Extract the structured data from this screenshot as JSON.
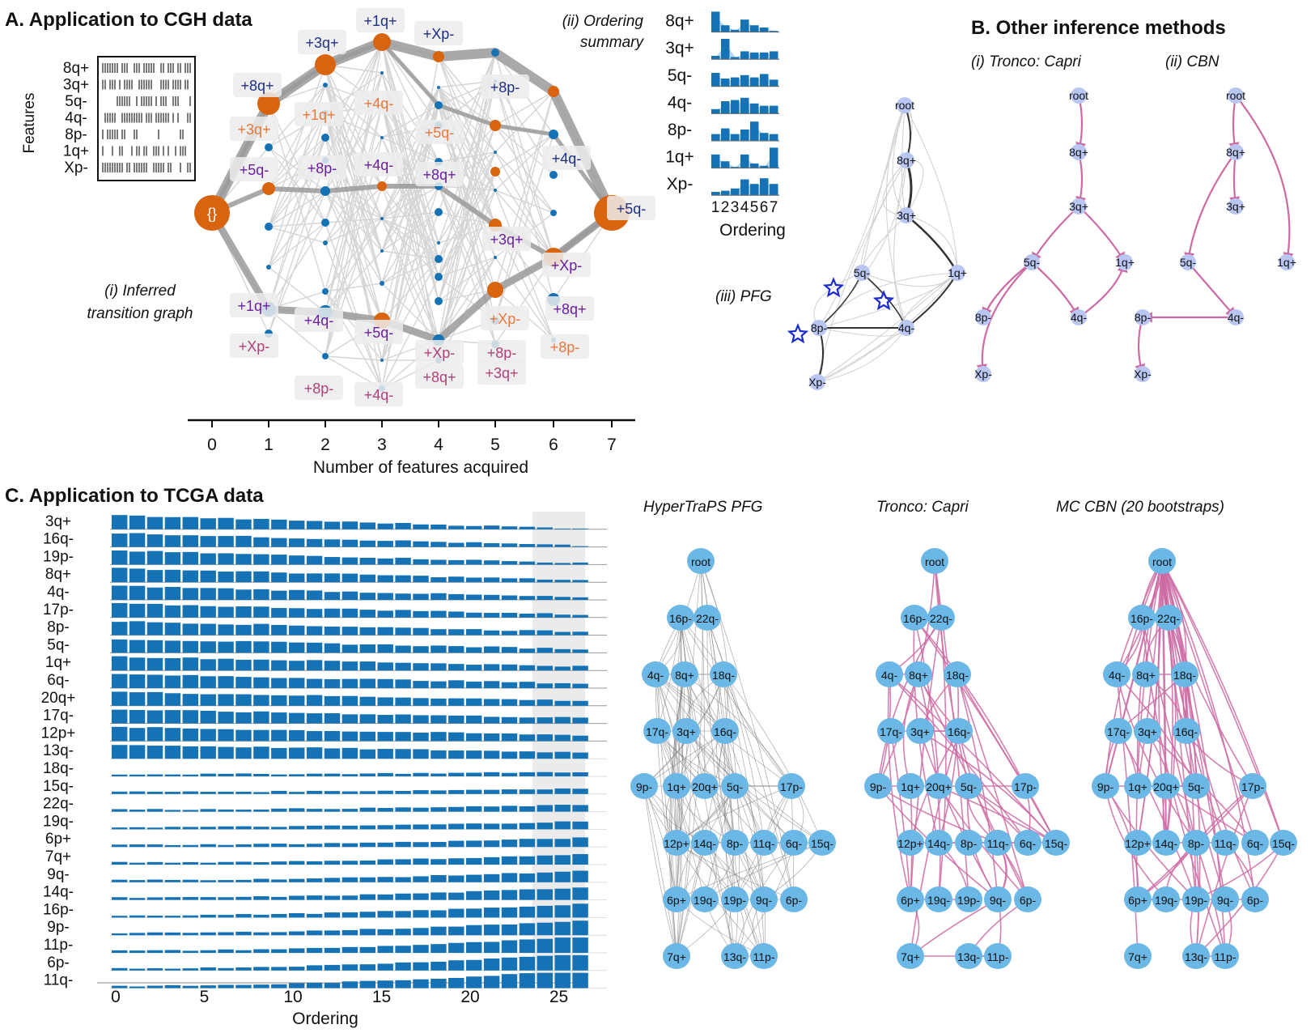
{
  "panelA": {
    "title": "A. Application to CGH data",
    "feature_axis_label": "Features",
    "features": [
      "8q+",
      "3q+",
      "5q-",
      "4q-",
      "8p-",
      "1q+",
      "Xp-"
    ],
    "caption_graph": "(i) Inferred transition graph",
    "caption_graph_line1": "(i) Inferred",
    "caption_graph_line2": "transition graph",
    "caption_summary_line1": "(ii) Ordering",
    "caption_summary_line2": "summary",
    "x_axis_label": "Number of features acquired",
    "x_ticks": [
      "0",
      "1",
      "2",
      "3",
      "4",
      "5",
      "6",
      "7"
    ],
    "start_node": "{}",
    "transition_labels": [
      {
        "text": "+3q+",
        "color": "#1f2f86"
      },
      {
        "text": "+1q+",
        "color": "#1f2f86"
      },
      {
        "text": "+Xp-",
        "color": "#1f2f86"
      },
      {
        "text": "+8q+",
        "color": "#1f2f86"
      },
      {
        "text": "+8p-",
        "color": "#1f2f86"
      },
      {
        "text": "+4q-",
        "color": "#1f2f86"
      },
      {
        "text": "+5q-",
        "color": "#1f2f86"
      },
      {
        "text": "+3q+",
        "color": "#e8783c"
      },
      {
        "text": "+1q+",
        "color": "#e8783c"
      },
      {
        "text": "+4q-",
        "color": "#e8783c"
      },
      {
        "text": "+5q-",
        "color": "#e8783c"
      },
      {
        "text": "+5q-",
        "color": "#6a1fa0"
      },
      {
        "text": "+8p-",
        "color": "#6a1fa0"
      },
      {
        "text": "+4q-",
        "color": "#6a1fa0"
      },
      {
        "text": "+8q+",
        "color": "#6a1fa0"
      },
      {
        "text": "+3q+",
        "color": "#6a1fa0"
      },
      {
        "text": "+Xp-",
        "color": "#6a1fa0"
      },
      {
        "text": "+1q+",
        "color": "#6a1fa0"
      },
      {
        "text": "+4q-",
        "color": "#6a1fa0"
      },
      {
        "text": "+5q-",
        "color": "#6a1fa0"
      },
      {
        "text": "+8q+",
        "color": "#6a1fa0"
      },
      {
        "text": "+Xp-",
        "color": "#e8783c"
      },
      {
        "text": "+8p-",
        "color": "#e8783c"
      },
      {
        "text": "+Xp-",
        "color": "#b0407a"
      },
      {
        "text": "+Xp-",
        "color": "#b0407a"
      },
      {
        "text": "+8q+",
        "color": "#b0407a"
      },
      {
        "text": "+8p-",
        "color": "#b0407a"
      },
      {
        "text": "+3q+",
        "color": "#b0407a"
      },
      {
        "text": "+8p-",
        "color": "#b0407a"
      },
      {
        "text": "+4q-",
        "color": "#b0407a"
      }
    ],
    "summary_rows": [
      "8q+",
      "3q+",
      "5q-",
      "4q-",
      "8p-",
      "1q+",
      "Xp-"
    ],
    "summary_ticks": [
      "1",
      "2",
      "3",
      "4",
      "5",
      "6",
      "7"
    ],
    "summary_axis_label": "Ordering",
    "summary_values": [
      [
        0.9,
        0.3,
        0.1,
        0.55,
        0.3,
        0.2,
        0.05
      ],
      [
        0.15,
        0.9,
        0.1,
        0.35,
        0.3,
        0.3,
        0.35
      ],
      [
        0.6,
        0.35,
        0.4,
        0.5,
        0.4,
        0.55,
        0.3
      ],
      [
        0.2,
        0.55,
        0.6,
        0.7,
        0.45,
        0.35,
        0.35
      ],
      [
        0.3,
        0.55,
        0.3,
        0.5,
        0.85,
        0.35,
        0.3
      ],
      [
        0.6,
        0.3,
        0.05,
        0.6,
        0.2,
        0.1,
        0.9
      ],
      [
        0.15,
        0.2,
        0.3,
        0.7,
        0.5,
        0.75,
        0.5
      ]
    ],
    "pfg_caption": "(iii) PFG",
    "pfg_nodes": [
      "root",
      "8q+",
      "3q+",
      "1q+",
      "5q-",
      "4q-",
      "8p-",
      "Xp-"
    ]
  },
  "panelB": {
    "title": "B.   Other inference methods",
    "capri_caption": "(i) Tronco: Capri",
    "cbn_caption": "(ii) CBN",
    "capri_nodes": [
      "root",
      "8q+",
      "3q+",
      "5q-",
      "1q+",
      "8p-",
      "4q-",
      "Xp-"
    ],
    "cbn_nodes": [
      "root",
      "8q+",
      "3q+",
      "5q-",
      "1q+",
      "8p-",
      "4q-",
      "Xp-"
    ]
  },
  "panelC": {
    "title": "C. Application to TCGA data",
    "features": [
      "3q+",
      "16q-",
      "19p-",
      "8q+",
      "4q-",
      "17p-",
      "8p-",
      "5q-",
      "1q+",
      "6q-",
      "20q+",
      "17q-",
      "12p+",
      "13q-",
      "18q-",
      "15q-",
      "22q-",
      "19q-",
      "6p+",
      "7q+",
      "9q-",
      "14q-",
      "16p-",
      "9p-",
      "11p-",
      "6p-",
      "11q-"
    ],
    "x_ticks": [
      "0",
      "5",
      "10",
      "15",
      "20",
      "25"
    ],
    "x_axis_label": "Ordering",
    "graph_titles": [
      "HyperTraPS PFG",
      "Tronco: Capri",
      "MC CBN (20 bootstraps)"
    ],
    "graph_nodes": [
      "root",
      "16p-",
      "22q-",
      "4q-",
      "8q+",
      "18q-",
      "17q-",
      "3q+",
      "16q-",
      "9p-",
      "1q+",
      "20q+",
      "5q-",
      "17p-",
      "12p+",
      "14q-",
      "8p-",
      "11q-",
      "6q-",
      "15q-",
      "6p+",
      "19q-",
      "19p-",
      "9q-",
      "6p-",
      "7q+",
      "13q-",
      "11p-"
    ]
  },
  "colors": {
    "orange": "#d9640f",
    "blue": "#1573b5",
    "light_blue_node": "#6bb7e6",
    "lavender_node": "#b9c6f2",
    "pink": "#cc6aa3"
  }
}
